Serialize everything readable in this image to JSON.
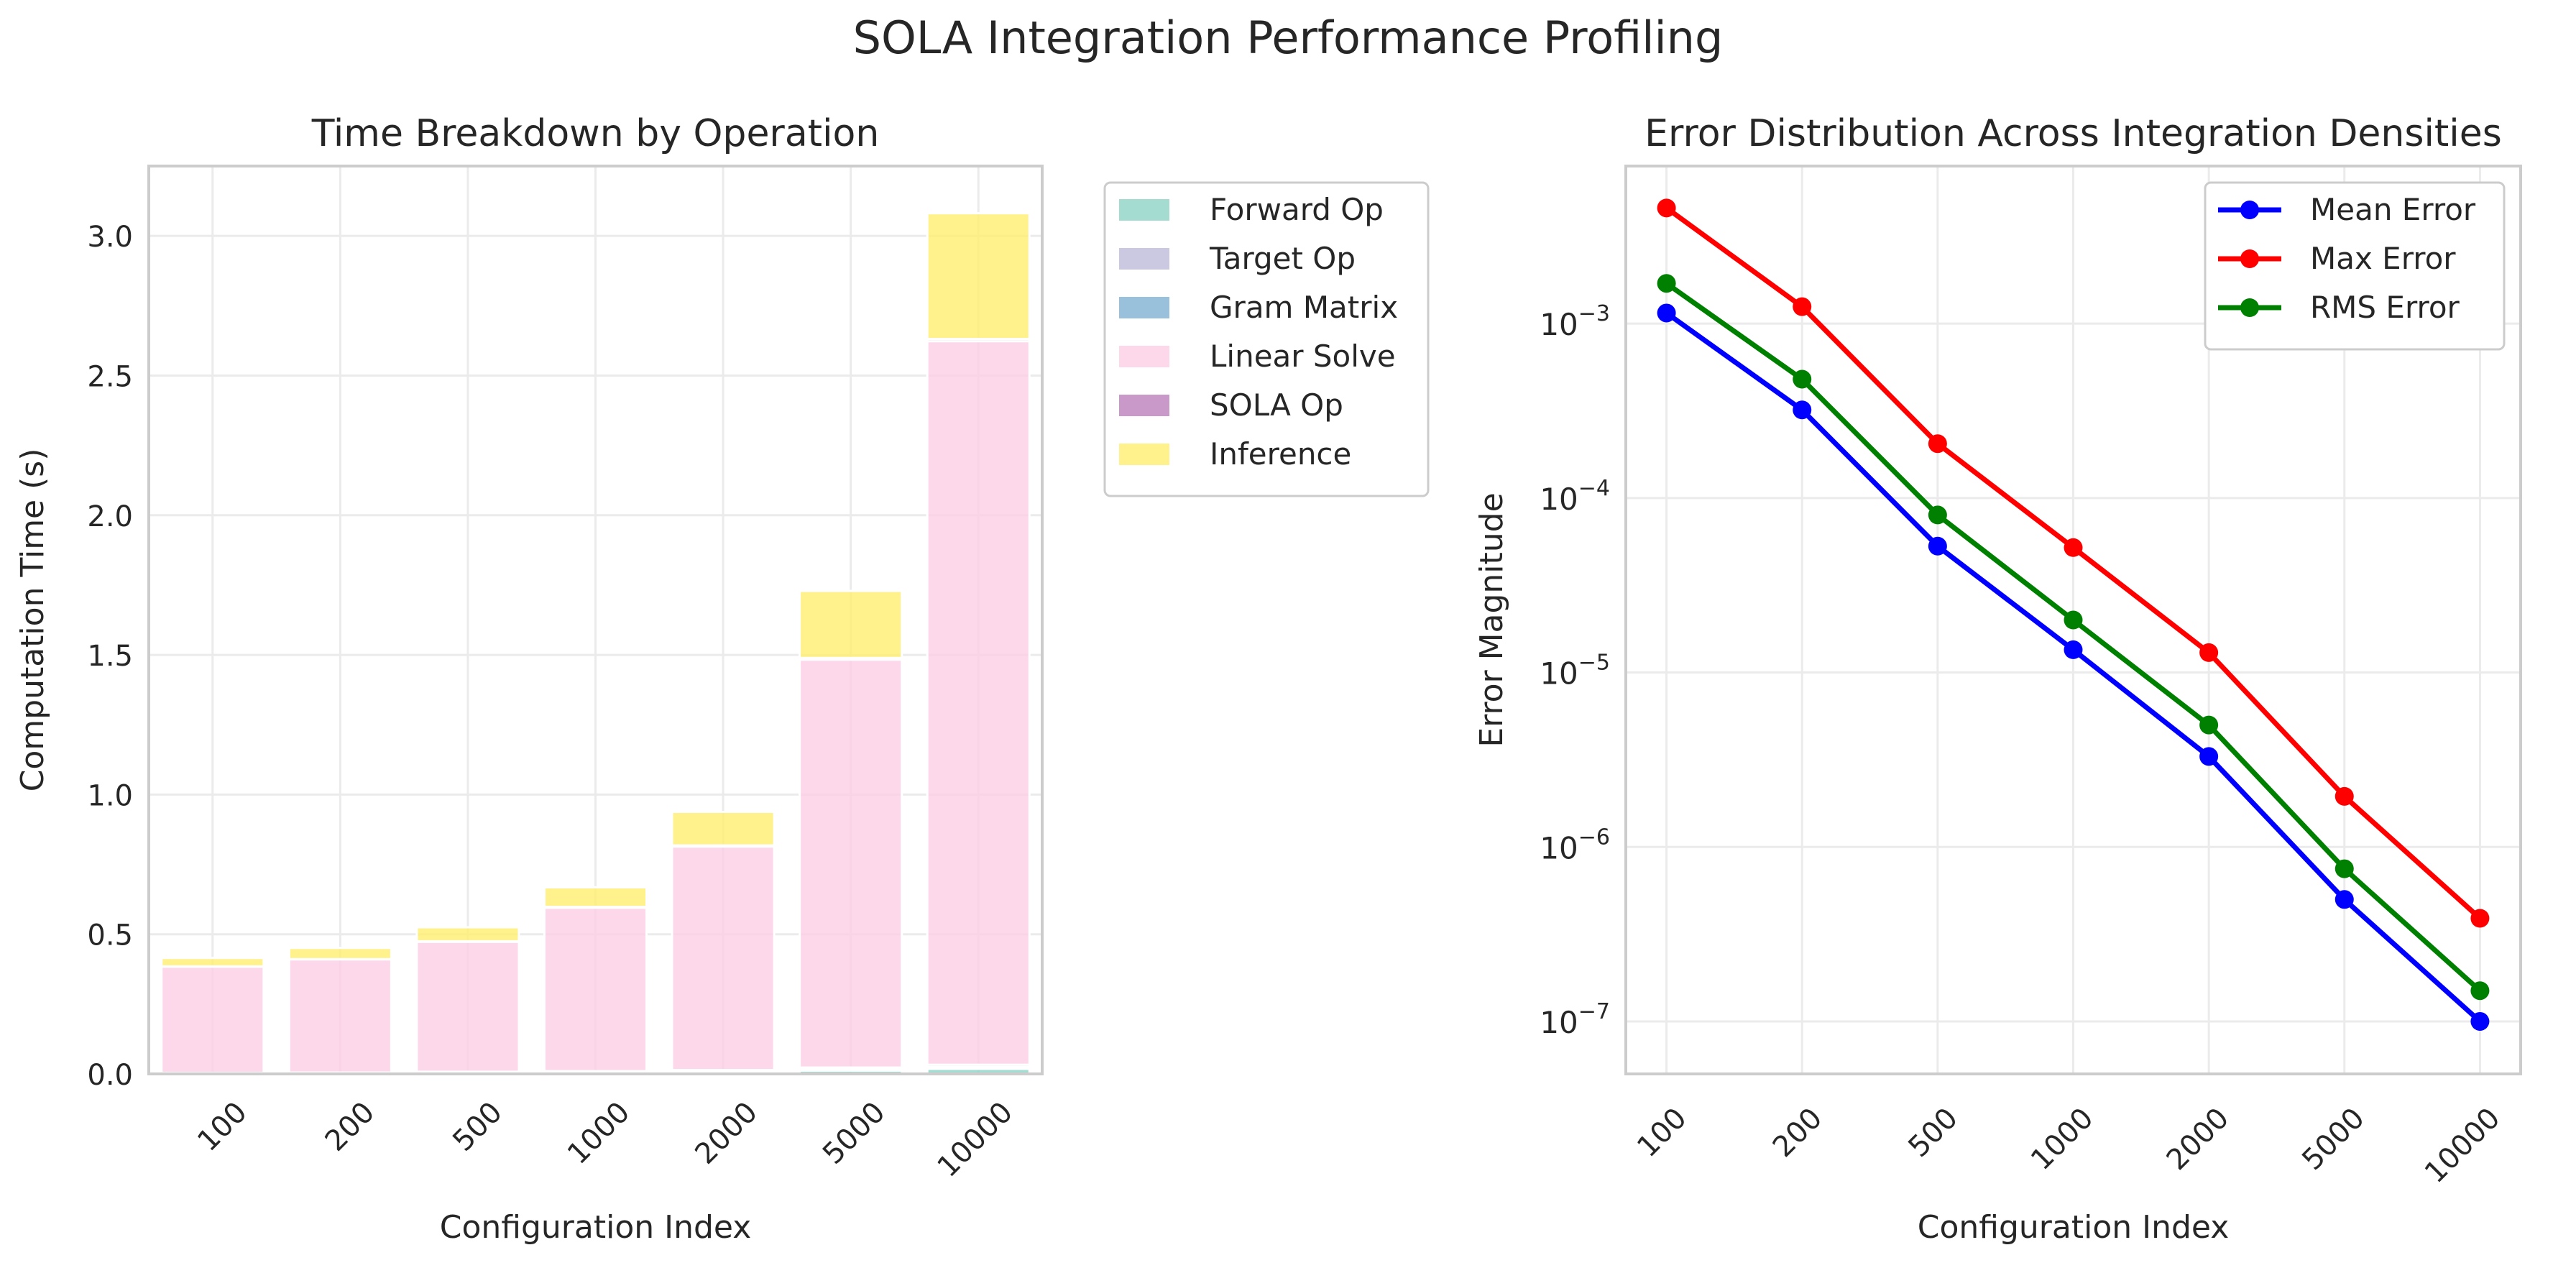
{
  "figure": {
    "suptitle": "SOLA Integration Performance Profiling"
  },
  "chart_data": [
    {
      "type": "bar",
      "stacked": true,
      "title": "Time Breakdown by Operation",
      "xlabel": "Configuration Index",
      "ylabel": "Computation Time (s)",
      "categories": [
        "100",
        "200",
        "500",
        "1000",
        "2000",
        "5000",
        "10000"
      ],
      "ylim": [
        0,
        3.25
      ],
      "yticks": [
        0.0,
        0.5,
        1.0,
        1.5,
        2.0,
        2.5,
        3.0
      ],
      "ytick_labels": [
        "0.0",
        "0.5",
        "1.0",
        "1.5",
        "2.0",
        "2.5",
        "3.0"
      ],
      "grid": true,
      "legend_position": "outside-right",
      "series": [
        {
          "name": "Forward Op",
          "color": "#8dd3c7",
          "values": [
            0.002,
            0.003,
            0.004,
            0.005,
            0.007,
            0.012,
            0.018
          ]
        },
        {
          "name": "Target Op",
          "color": "#bebada",
          "values": [
            0.001,
            0.001,
            0.002,
            0.002,
            0.003,
            0.005,
            0.007
          ]
        },
        {
          "name": "Gram Matrix",
          "color": "#80b1d3",
          "values": [
            0.001,
            0.001,
            0.002,
            0.003,
            0.004,
            0.006,
            0.008
          ]
        },
        {
          "name": "Linear Solve",
          "color": "#fccde5",
          "values": [
            0.38,
            0.405,
            0.465,
            0.585,
            0.8,
            1.46,
            2.59
          ]
        },
        {
          "name": "SOLA Op",
          "color": "#bc80bd",
          "values": [
            0.001,
            0.001,
            0.002,
            0.003,
            0.004,
            0.006,
            0.008
          ]
        },
        {
          "name": "Inference",
          "color": "#ffed6f",
          "values": [
            0.03,
            0.04,
            0.05,
            0.07,
            0.12,
            0.24,
            0.45
          ]
        }
      ]
    },
    {
      "type": "line",
      "title": "Error Distribution Across Integration Densities",
      "xlabel": "Configuration Index",
      "ylabel": "Error Magnitude",
      "categories": [
        "100",
        "200",
        "500",
        "1000",
        "2000",
        "5000",
        "10000"
      ],
      "yscale": "log",
      "ylim": [
        5e-08,
        0.008
      ],
      "yticks": [
        -7,
        -6,
        -5,
        -4,
        -3
      ],
      "ytick_base": "10",
      "ytick_exponents": [
        "−7",
        "−6",
        "−5",
        "−4",
        "−3"
      ],
      "grid": true,
      "legend_position": "top-right",
      "series": [
        {
          "name": "Mean Error",
          "color": "#0000ff",
          "values": [
            0.00115,
            0.00032,
            5.3e-05,
            1.35e-05,
            3.3e-06,
            5e-07,
            1e-07
          ]
        },
        {
          "name": "Max Error",
          "color": "#ff0000",
          "values": [
            0.0046,
            0.00125,
            0.000205,
            5.2e-05,
            1.3e-05,
            1.95e-06,
            3.9e-07
          ]
        },
        {
          "name": "RMS Error",
          "color": "#008000",
          "values": [
            0.0017,
            0.00048,
            8e-05,
            2e-05,
            5e-06,
            7.5e-07,
            1.5e-07
          ]
        }
      ]
    }
  ]
}
